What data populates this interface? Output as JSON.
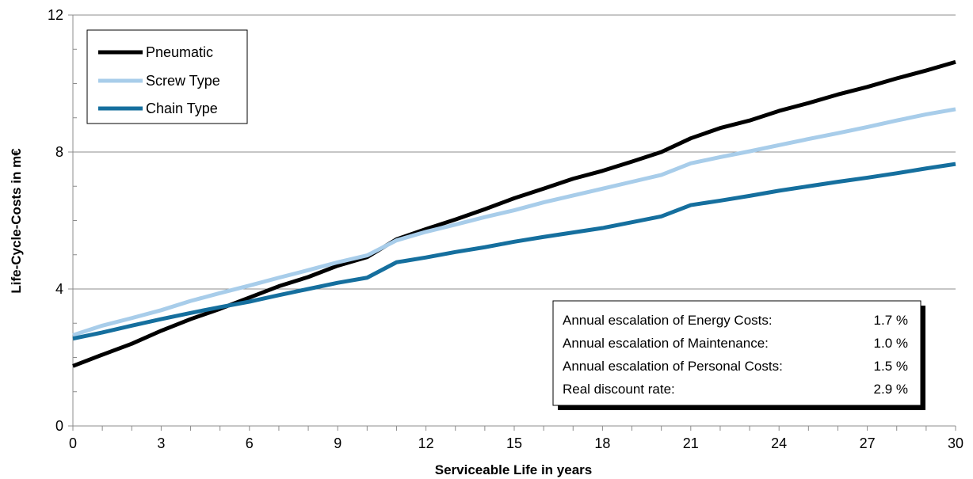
{
  "chart_data": {
    "type": "line",
    "xlabel": "Serviceable Life in years",
    "ylabel": "Life-Cycle-Costs in m€",
    "xlim": [
      0,
      30
    ],
    "ylim": [
      0,
      12
    ],
    "xticks": [
      "0",
      "3",
      "6",
      "9",
      "12",
      "15",
      "18",
      "21",
      "24",
      "27",
      "30"
    ],
    "yticks": [
      "0",
      "4",
      "8",
      "12"
    ],
    "grid": "horizontal",
    "legend_position": "top-left",
    "x": [
      0,
      1,
      2,
      3,
      4,
      5,
      6,
      7,
      8,
      9,
      10,
      11,
      12,
      13,
      14,
      15,
      16,
      17,
      18,
      19,
      20,
      21,
      22,
      23,
      24,
      25,
      26,
      27,
      28,
      29,
      30
    ],
    "series": [
      {
        "name": "Pneumatic",
        "color": "#000000",
        "values": [
          1.75,
          2.08,
          2.4,
          2.78,
          3.12,
          3.42,
          3.75,
          4.08,
          4.35,
          4.68,
          4.93,
          5.45,
          5.75,
          6.03,
          6.33,
          6.65,
          6.93,
          7.22,
          7.45,
          7.72,
          8.0,
          8.4,
          8.7,
          8.92,
          9.2,
          9.43,
          9.68,
          9.9,
          10.15,
          10.38,
          10.63
        ]
      },
      {
        "name": "Screw Type",
        "color": "#a8cdea",
        "values": [
          2.65,
          2.93,
          3.15,
          3.38,
          3.65,
          3.88,
          4.1,
          4.33,
          4.55,
          4.78,
          4.98,
          5.42,
          5.67,
          5.88,
          6.1,
          6.3,
          6.53,
          6.73,
          6.93,
          7.13,
          7.33,
          7.67,
          7.85,
          8.02,
          8.2,
          8.38,
          8.55,
          8.73,
          8.92,
          9.1,
          9.25
        ]
      },
      {
        "name": "Chain Type",
        "color": "#156f9e",
        "values": [
          2.55,
          2.73,
          2.93,
          3.12,
          3.3,
          3.47,
          3.63,
          3.82,
          4.0,
          4.18,
          4.33,
          4.78,
          4.92,
          5.08,
          5.22,
          5.38,
          5.52,
          5.65,
          5.78,
          5.95,
          6.12,
          6.45,
          6.58,
          6.72,
          6.87,
          7.0,
          7.13,
          7.25,
          7.38,
          7.52,
          7.65
        ]
      }
    ],
    "annotation": {
      "rows": [
        {
          "label": "Annual escalation of Energy Costs:",
          "value": "1.7 %"
        },
        {
          "label": "Annual escalation of Maintenance:",
          "value": "1.0 %"
        },
        {
          "label": "Annual escalation of Personal Costs:",
          "value": "1.5 %"
        },
        {
          "label": "Real discount rate:",
          "value": "2.9 %"
        }
      ]
    }
  }
}
